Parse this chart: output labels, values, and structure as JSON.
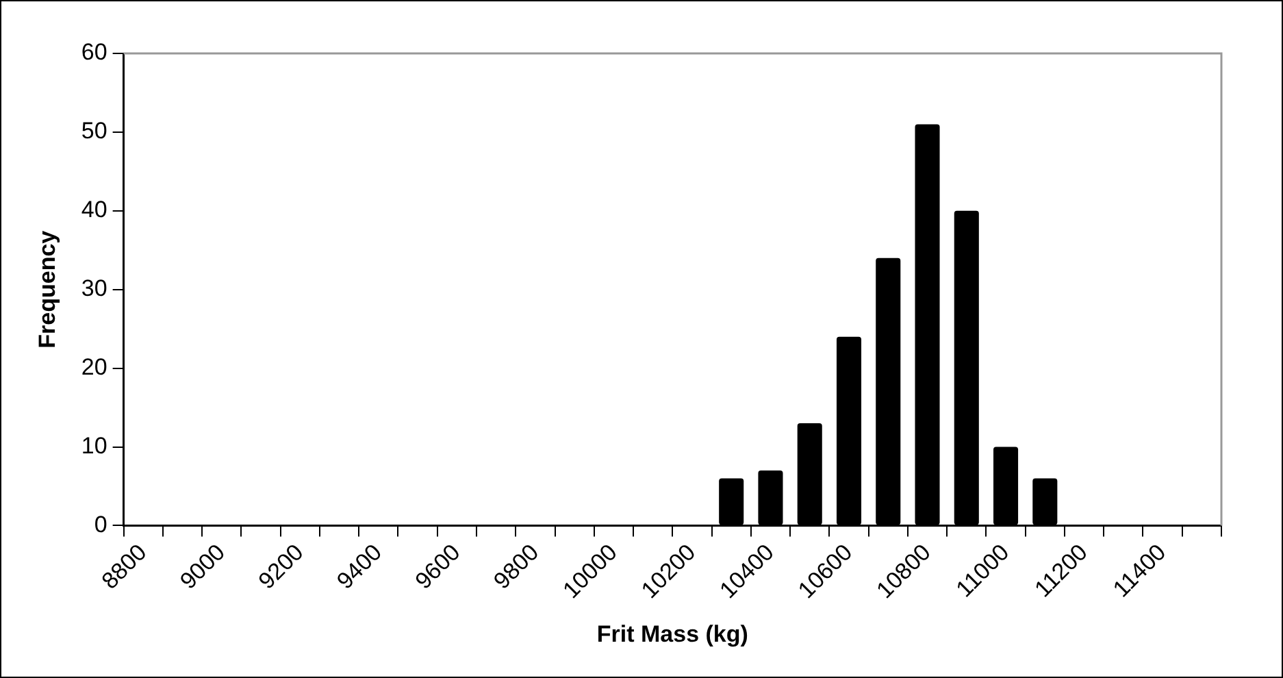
{
  "chart_data": {
    "type": "bar",
    "xlabel": "Frit Mass (kg)",
    "ylabel": "Frequency",
    "categories": [
      "8800",
      null,
      "9000",
      null,
      "9200",
      null,
      "9400",
      null,
      "9600",
      null,
      "9800",
      null,
      "10000",
      null,
      "10200",
      null,
      "10400",
      null,
      "10600",
      null,
      "10800",
      null,
      "11000",
      null,
      "11200",
      null,
      "11400",
      null
    ],
    "values": [
      0,
      0,
      0,
      0,
      0,
      0,
      0,
      0,
      0,
      0,
      0,
      0,
      0,
      0,
      0,
      6,
      7,
      13,
      24,
      34,
      51,
      40,
      10,
      6,
      0,
      0,
      0,
      0
    ],
    "color": "#000000",
    "ylim": [
      0,
      60
    ],
    "yticks": [
      0,
      10,
      20,
      30,
      40,
      50,
      60
    ],
    "grid": false,
    "legend": false
  }
}
